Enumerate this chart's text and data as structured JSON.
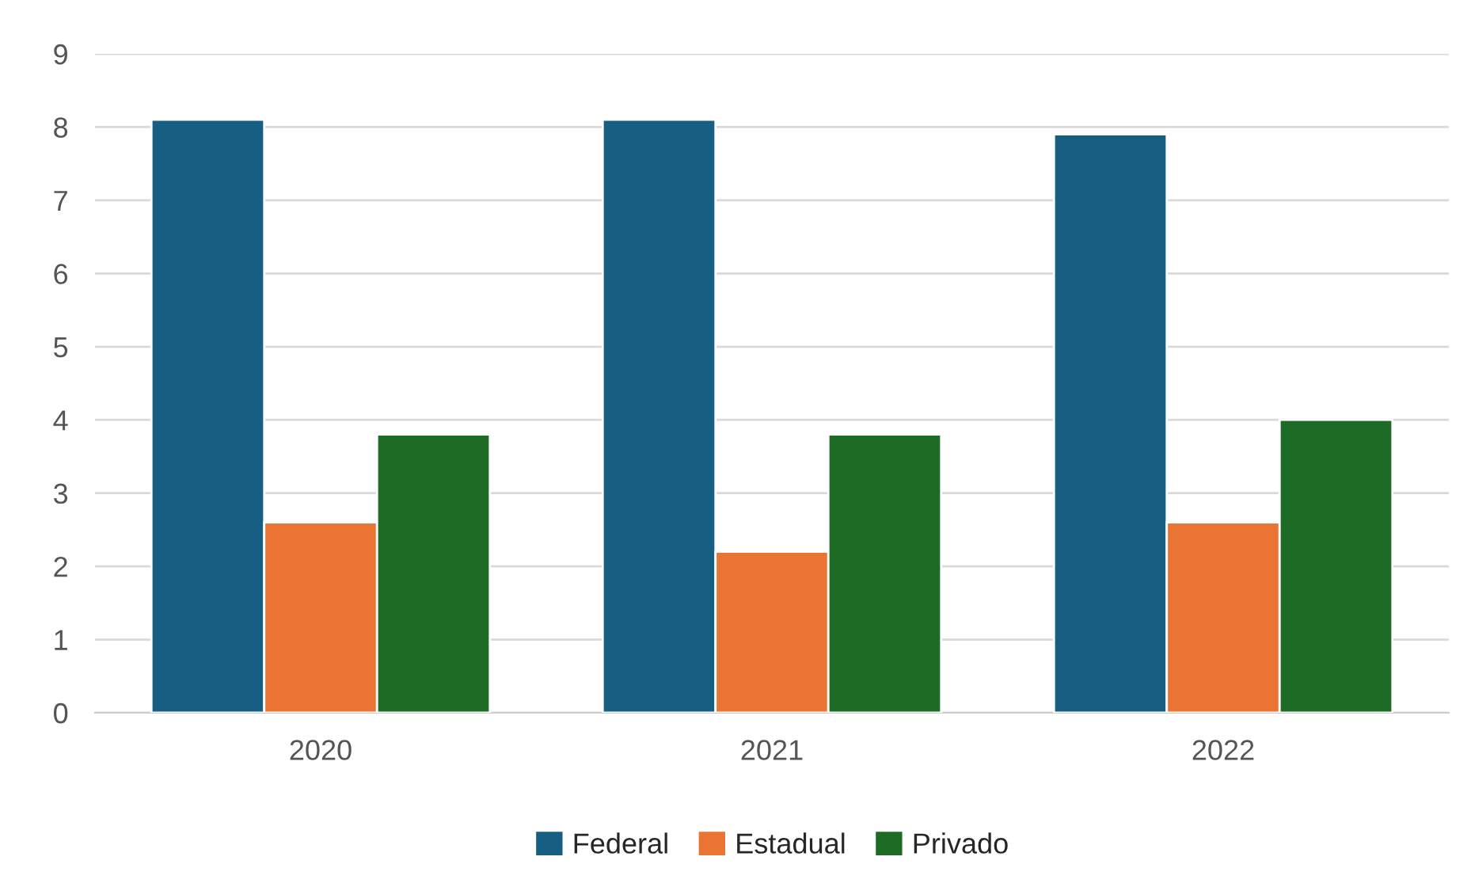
{
  "chart_data": {
    "type": "bar",
    "categories": [
      "2020",
      "2021",
      "2022"
    ],
    "series": [
      {
        "name": "Federal",
        "color": "#175f82",
        "values": [
          8.1,
          8.1,
          7.9
        ]
      },
      {
        "name": "Estadual",
        "color": "#e97434",
        "values": [
          2.6,
          2.2,
          2.6
        ]
      },
      {
        "name": "Privado",
        "color": "#1d6b25",
        "values": [
          3.8,
          3.8,
          4.0
        ]
      }
    ],
    "ylim": [
      0,
      9
    ],
    "yticks": [
      0,
      1,
      2,
      3,
      4,
      5,
      6,
      7,
      8,
      9
    ],
    "grid": "y",
    "legend": "bottom"
  }
}
